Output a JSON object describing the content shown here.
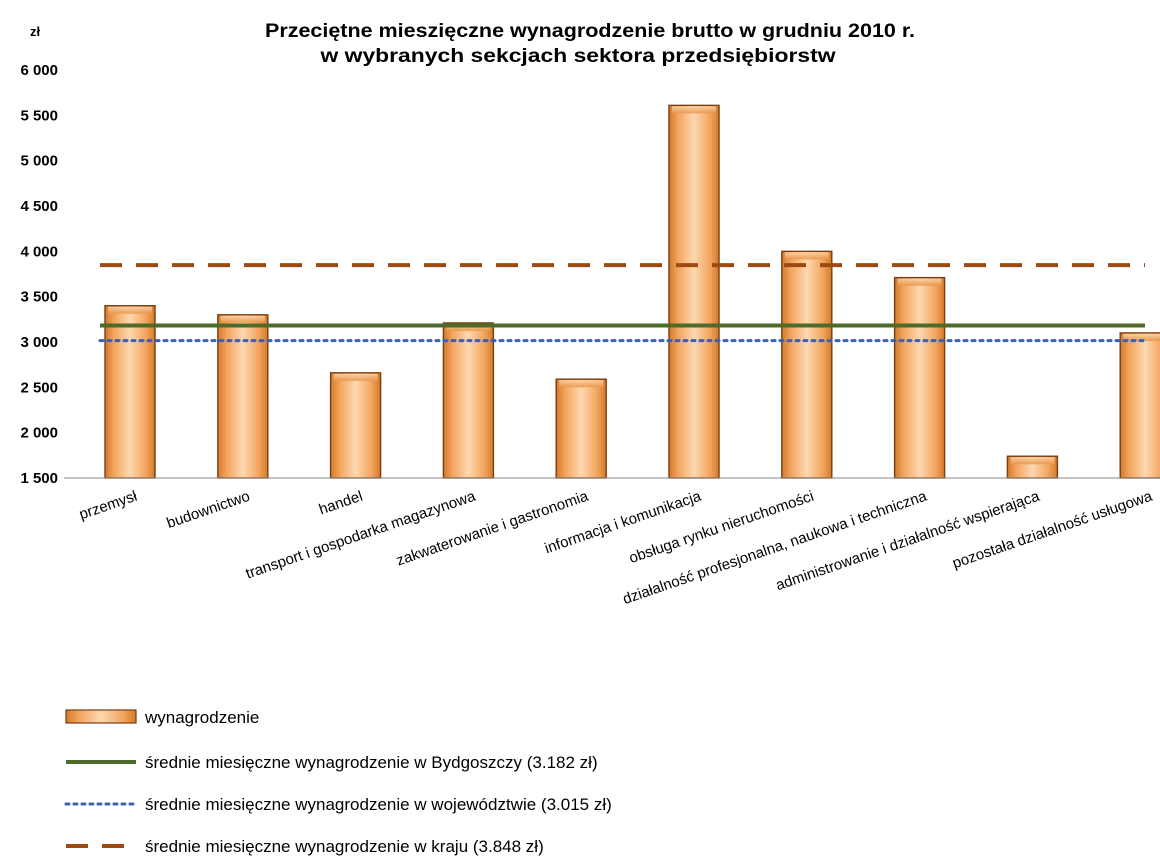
{
  "chart_data": {
    "type": "bar",
    "title_lines": [
      "Przeciętne mieszięczne wynagrodzenie brutto w grudniu 2010 r.",
      "w wybranych sekcjach sektora przedsiębiorstw"
    ],
    "y_unit": "zł",
    "ylim": [
      1500,
      6000
    ],
    "yticks": [
      1500,
      2000,
      2500,
      3000,
      3500,
      4000,
      4500,
      5000,
      5500,
      6000
    ],
    "ytick_labels": [
      "1 500",
      "2 000",
      "2 500",
      "3 000",
      "3 500",
      "4 000",
      "4 500",
      "5 000",
      "5 500",
      "6 000"
    ],
    "categories": [
      "przemysł",
      "budownictwo",
      "handel",
      "transport i gospodarka magazynowa",
      "zakwaterowanie i gastronomia",
      "informacja i komunikacja",
      "obsługa rynku nieruchomości",
      "działalność profesjonalna, naukowa i techniczna",
      "administrowanie i działalność wspierająca",
      "pozostała działalność usługowa"
    ],
    "series": [
      {
        "name": "wynagrodzenie",
        "values": [
          3400,
          3300,
          2660,
          3210,
          2590,
          5610,
          4000,
          3710,
          1740,
          3100
        ],
        "color": "#f5a561"
      }
    ],
    "reference_lines": [
      {
        "name": "średnie miesięczne wynagrodzenie w Bydgoszczy (3.182 zł)",
        "value": 3182,
        "style": "solid",
        "color": "#4e6b2a"
      },
      {
        "name": "średnie miesięczne wynagrodzenie w województwie (3.015 zł)",
        "value": 3015,
        "style": "dotted",
        "color": "#3a60b5"
      },
      {
        "name": "średnie miesięczne wynagrodzenie w kraju (3.848 zł)",
        "value": 3848,
        "style": "dashed",
        "color": "#9c4a12"
      }
    ],
    "grid": false,
    "legend_position": "bottom-left"
  }
}
